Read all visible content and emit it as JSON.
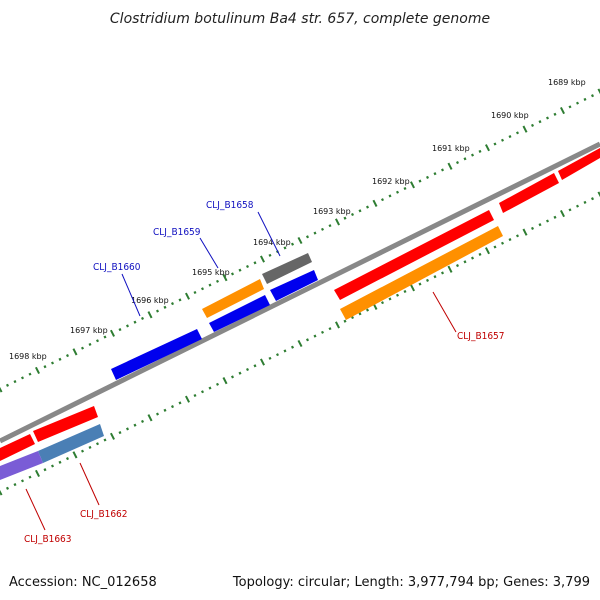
{
  "title": "Clostridium botulinum Ba4 str. 657, complete genome",
  "footer": {
    "accession": "Accession: NC_012658",
    "summary": "Topology: circular; Length: 3,977,794 bp; Genes: 3,799"
  },
  "kbp_labels": [
    "1689 kbp",
    "1690 kbp",
    "1691 kbp",
    "1692 kbp",
    "1693 kbp",
    "1694 kbp",
    "1695 kbp",
    "1696 kbp",
    "1697 kbp",
    "1698 kbp"
  ],
  "gene_labels": {
    "forward": [
      "CLJ_B1658",
      "CLJ_B1659",
      "CLJ_B1660"
    ],
    "reverse": [
      "CLJ_B1657",
      "CLJ_B1662",
      "CLJ_B1663"
    ]
  },
  "colors": {
    "backbone": "#888888",
    "tick": "#2e7d32",
    "forward_label": "#1010c0",
    "reverse_label": "#c00000",
    "red": "#ff0000",
    "blue": "#0000ee",
    "orange": "#ff9000",
    "gray": "#666666",
    "steel": "#4a7fb5",
    "violet": "#7a5cd6"
  }
}
